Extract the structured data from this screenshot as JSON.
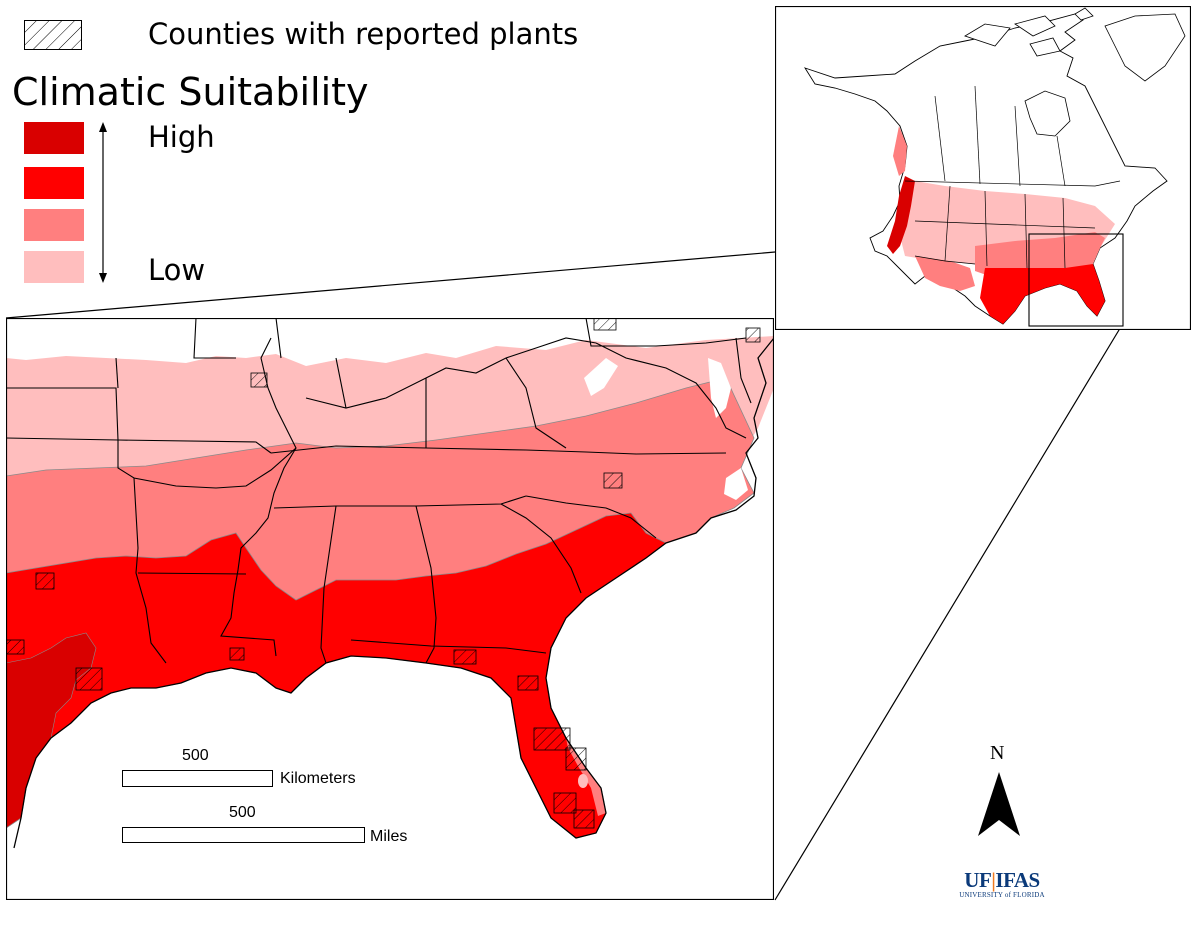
{
  "legend": {
    "hatch_label": "Counties with reported plants",
    "title": "Climatic Suitability",
    "high_label": "High",
    "low_label": "Low",
    "classes": [
      {
        "level": "high",
        "color": "#d90000"
      },
      {
        "level": "medium-high",
        "color": "#ff0000"
      },
      {
        "level": "medium-low",
        "color": "#ff7f7f"
      },
      {
        "level": "low",
        "color": "#ffbebe"
      }
    ]
  },
  "colors": {
    "no_data": "#ffffff",
    "boundary": "#000000",
    "zone_edge": "#8a8a8a"
  },
  "scale_bars": {
    "kilometers": {
      "value": "500",
      "unit": "Kilometers"
    },
    "miles": {
      "value": "500",
      "unit": "Miles"
    }
  },
  "north_arrow": {
    "label": "N"
  },
  "logo": {
    "main_left": "UF",
    "main_right": "IFAS",
    "sub": "UNIVERSITY of FLORIDA"
  }
}
